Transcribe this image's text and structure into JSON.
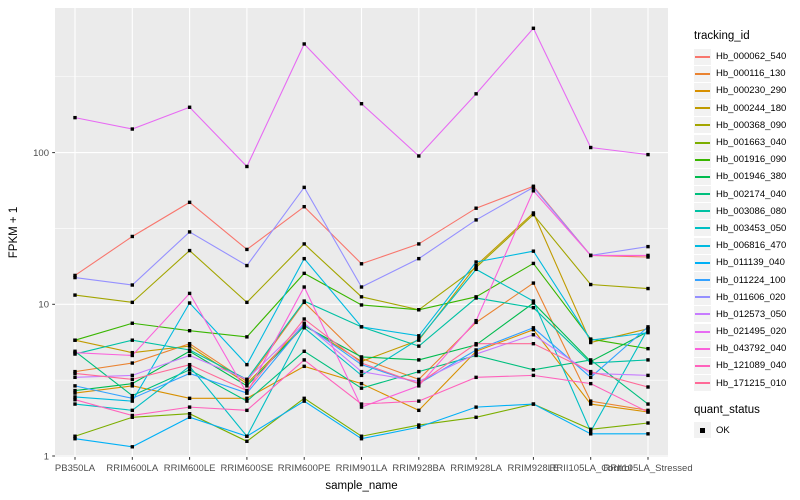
{
  "chart_data": {
    "type": "line",
    "title": "",
    "xlabel": "sample_name",
    "ylabel": "FPKM + 1",
    "yscale": "log10",
    "ylim": [
      1,
      900
    ],
    "yticks": [
      1,
      10,
      100
    ],
    "grid": "on",
    "panel_color": "#EBEBEB",
    "gridline_color": "#FFFFFF",
    "marker": "black-square",
    "legend_position": "right",
    "legend": {
      "tracking_title": "tracking_id",
      "quant_title": "quant_status",
      "quant_value": "OK"
    },
    "categories": [
      "PB350LA",
      "RRIM600LA",
      "RRIM600LE",
      "RRIM600SE",
      "RRIM600PE",
      "RRIM901LA",
      "RRIM928BA",
      "RRIM928LA",
      "RRIM928LE",
      "RRII105LA_Control",
      "RRII105LA_Stressed"
    ],
    "series": [
      {
        "name": "Hb_000062_540",
        "color": "#F8766D",
        "values": [
          15.5,
          28,
          47,
          23,
          44,
          18.5,
          25,
          43,
          60,
          21,
          20.5
        ]
      },
      {
        "name": "Hb_000116_130",
        "color": "#EA8331",
        "values": [
          3.6,
          4.1,
          5.5,
          3.1,
          10.3,
          4.4,
          3.2,
          7.6,
          13.8,
          2.3,
          2.0
        ]
      },
      {
        "name": "Hb_000230_290",
        "color": "#D89000",
        "values": [
          2.6,
          2.9,
          2.4,
          2.4,
          3.9,
          3.0,
          2.0,
          4.9,
          6.8,
          2.2,
          1.95
        ]
      },
      {
        "name": "Hb_000244_180",
        "color": "#C09B00",
        "values": [
          5.8,
          4.8,
          5.3,
          3.0,
          7.3,
          4.2,
          5.8,
          18,
          40,
          5.6,
          6.9
        ]
      },
      {
        "name": "Hb_000368_090",
        "color": "#A3A500",
        "values": [
          11.5,
          10.3,
          22.6,
          10.3,
          25,
          11.2,
          9.2,
          17.5,
          39,
          13.5,
          12.7
        ]
      },
      {
        "name": "Hb_001663_040",
        "color": "#7CAE00",
        "values": [
          1.35,
          1.8,
          1.9,
          1.25,
          2.4,
          1.35,
          1.6,
          1.8,
          2.2,
          1.5,
          1.65
        ]
      },
      {
        "name": "Hb_001916_090",
        "color": "#39B600",
        "values": [
          5.8,
          7.5,
          6.7,
          6.1,
          16,
          9.9,
          9.2,
          11.2,
          18.6,
          5.9,
          5.1
        ]
      },
      {
        "name": "Hb_001946_380",
        "color": "#00BB4E",
        "values": [
          2.7,
          3.0,
          4.9,
          2.9,
          7.2,
          4.5,
          4.3,
          5.4,
          10.2,
          4.2,
          6.6
        ]
      },
      {
        "name": "Hb_002174_040",
        "color": "#00BF7D",
        "values": [
          4.9,
          2.5,
          3.7,
          2.3,
          4.9,
          2.8,
          3.6,
          4.6,
          3.7,
          4.3,
          2.2
        ]
      },
      {
        "name": "Hb_003086_080",
        "color": "#00C1A3",
        "values": [
          4.7,
          5.8,
          5.0,
          3.2,
          10.5,
          7.1,
          5.3,
          11.0,
          9.5,
          4.1,
          4.3
        ]
      },
      {
        "name": "Hb_003453_050",
        "color": "#00BFC4",
        "values": [
          2.2,
          2.0,
          3.9,
          1.35,
          7.0,
          3.4,
          5.9,
          17,
          10.5,
          1.45,
          6.9
        ]
      },
      {
        "name": "Hb_006816_470",
        "color": "#00BAE0",
        "values": [
          2.45,
          2.3,
          10.2,
          4.0,
          20,
          7.1,
          6.2,
          19,
          22.4,
          5.8,
          6.5
        ]
      },
      {
        "name": "Hb_011139_040",
        "color": "#00B0F6",
        "values": [
          1.3,
          1.15,
          1.8,
          1.35,
          2.3,
          1.3,
          1.55,
          2.1,
          2.2,
          1.4,
          1.4
        ]
      },
      {
        "name": "Hb_011224_100",
        "color": "#35A2FF",
        "values": [
          2.9,
          2.4,
          3.5,
          2.6,
          7.4,
          4.0,
          3.0,
          5.0,
          7.0,
          3.3,
          7.1
        ]
      },
      {
        "name": "Hb_011606_020",
        "color": "#9590FF",
        "values": [
          15,
          13.4,
          30,
          18,
          59,
          13,
          20,
          36,
          59,
          21,
          24
        ]
      },
      {
        "name": "Hb_012573_050",
        "color": "#C77CFF",
        "values": [
          3.3,
          3.4,
          4.6,
          3.2,
          7.5,
          3.6,
          3.1,
          4.7,
          6.3,
          3.5,
          3.4
        ]
      },
      {
        "name": "Hb_021495_020",
        "color": "#E76BF3",
        "values": [
          170,
          143,
          199,
          81,
          520,
          210,
          95,
          244,
          660,
          108,
          97
        ]
      },
      {
        "name": "Hb_043792_040",
        "color": "#FA62DB",
        "values": [
          4.8,
          4.6,
          11.8,
          2.6,
          13,
          2.1,
          2.9,
          7.8,
          56,
          21,
          21
        ]
      },
      {
        "name": "Hb_121089_040",
        "color": "#FF62BC",
        "values": [
          2.35,
          1.85,
          2.1,
          2.0,
          4.3,
          2.2,
          2.3,
          3.3,
          3.4,
          3.0,
          1.95
        ]
      },
      {
        "name": "Hb_171215_010",
        "color": "#FF6A98",
        "values": [
          3.5,
          3.2,
          4.0,
          2.7,
          8.0,
          4.1,
          3.0,
          5.5,
          5.5,
          3.6,
          2.85
        ]
      }
    ]
  }
}
